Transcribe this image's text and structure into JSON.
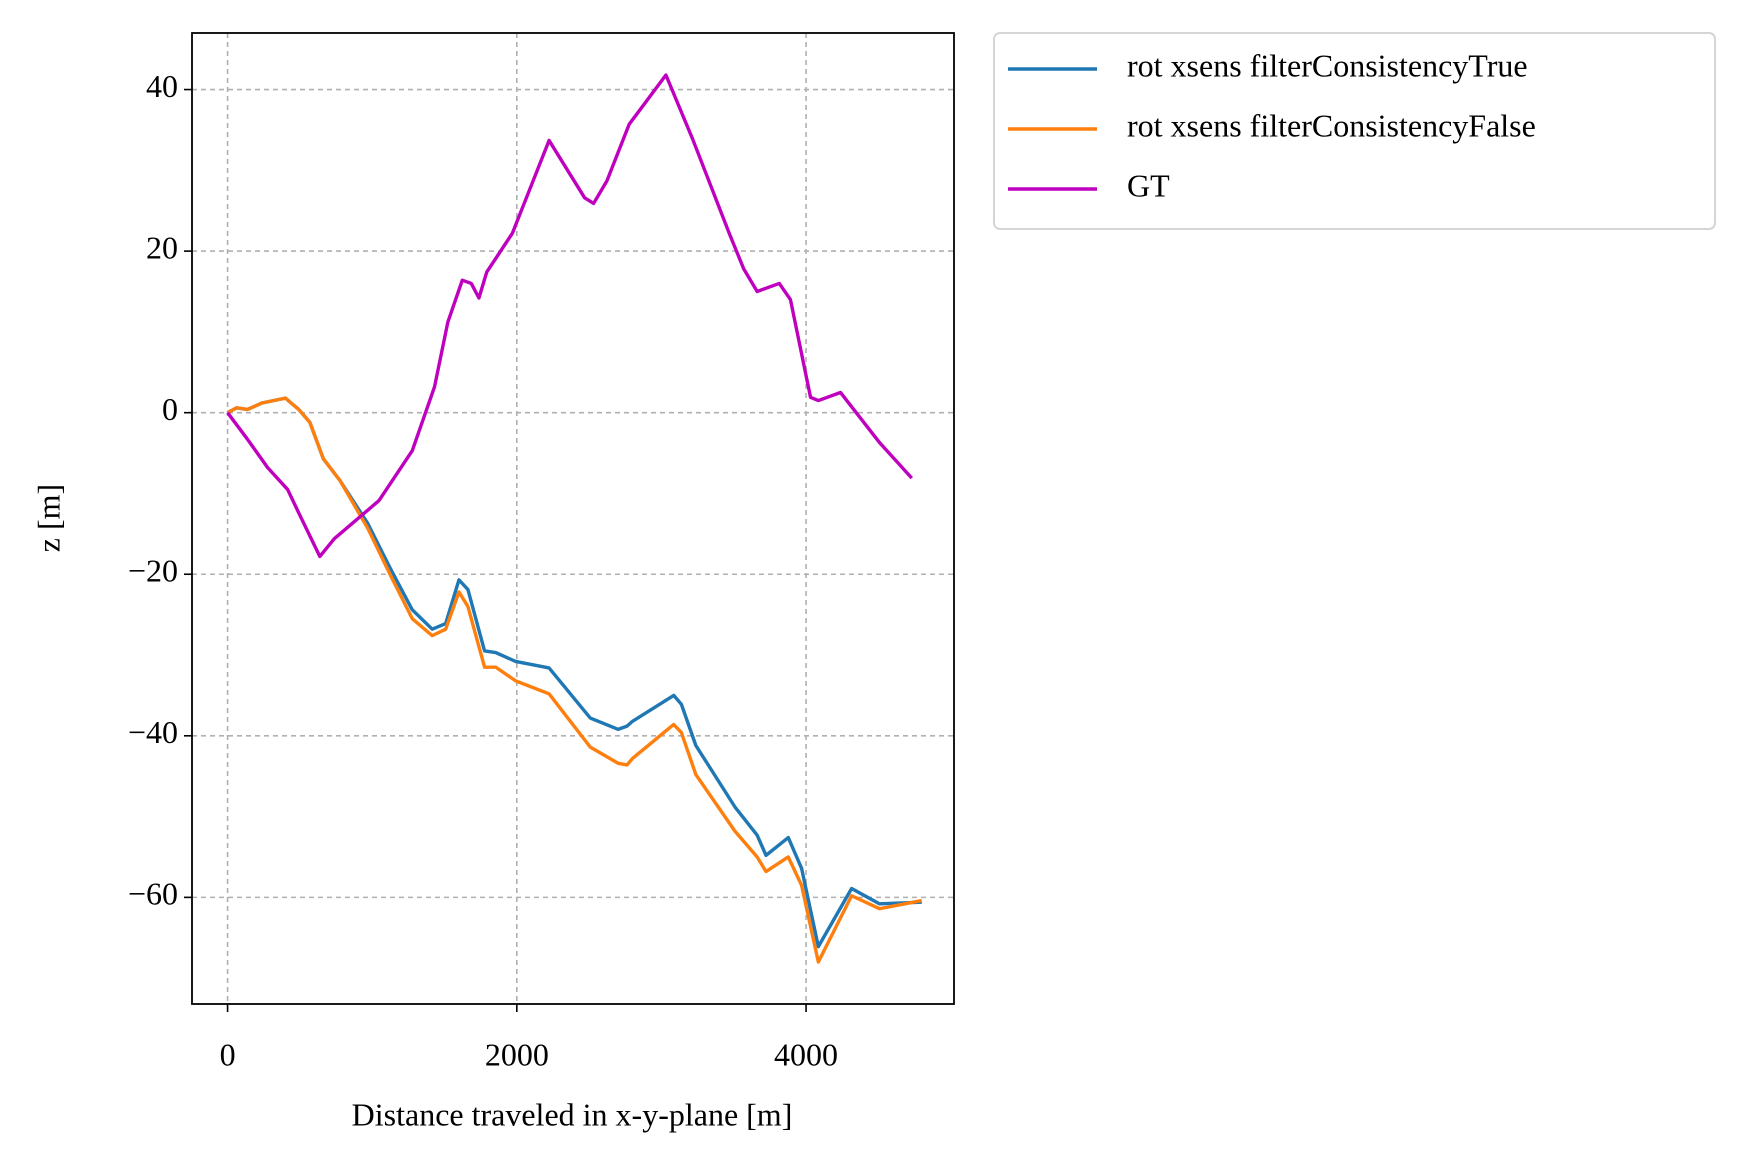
{
  "chart_data": {
    "type": "line",
    "xlabel": "Distance traveled in x-y-plane [m]",
    "ylabel": "z [m]",
    "xlim": [
      -246,
      5023
    ],
    "ylim": [
      -73.2,
      47.0
    ],
    "xticks": [
      0,
      2000,
      4000
    ],
    "yticks": [
      {
        "value": -60,
        "label": "−60"
      },
      {
        "value": -40,
        "label": "−40"
      },
      {
        "value": -20,
        "label": "−20"
      },
      0,
      20,
      40
    ],
    "grid": true,
    "series": [
      {
        "name": "rot xsens filterConsistencyTrue",
        "color": "#1f77b4",
        "x": [
          0,
          62,
          138,
          238,
          400,
          492,
          569,
          662,
          777,
          969,
          1123,
          1277,
          1415,
          1508,
          1600,
          1662,
          1777,
          1854,
          1992,
          2223,
          2508,
          2700,
          2762,
          2800,
          3085,
          3138,
          3238,
          3508,
          3662,
          3723,
          3877,
          3969,
          4085,
          4315,
          4508,
          4800
        ],
        "values": [
          0,
          0.6,
          0.4,
          1.2,
          1.8,
          0.4,
          -1.2,
          -5.7,
          -8.4,
          -13.7,
          -19.2,
          -24.4,
          -26.8,
          -26.1,
          -20.7,
          -21.9,
          -29.5,
          -29.7,
          -30.8,
          -31.6,
          -37.8,
          -39.2,
          -38.8,
          -38.2,
          -35,
          -36.1,
          -41.2,
          -48.8,
          -52.3,
          -54.8,
          -52.6,
          -56.4,
          -66.1,
          -58.9,
          -60.8,
          -60.6
        ]
      },
      {
        "name": "rot xsens filterConsistencyFalse",
        "color": "#ff7f0e",
        "x": [
          0,
          62,
          138,
          238,
          400,
          492,
          569,
          662,
          777,
          969,
          1123,
          1277,
          1415,
          1508,
          1600,
          1662,
          1777,
          1854,
          1992,
          2223,
          2508,
          2700,
          2762,
          2800,
          3085,
          3138,
          3238,
          3508,
          3662,
          3723,
          3877,
          3969,
          4085,
          4315,
          4508,
          4800
        ],
        "values": [
          0,
          0.6,
          0.4,
          1.2,
          1.8,
          0.4,
          -1.2,
          -5.7,
          -8.4,
          -14.3,
          -20,
          -25.5,
          -27.6,
          -26.8,
          -22.2,
          -24,
          -31.5,
          -31.5,
          -33.2,
          -34.8,
          -41.4,
          -43.4,
          -43.6,
          -42.8,
          -38.6,
          -39.6,
          -44.8,
          -51.8,
          -55,
          -56.8,
          -55,
          -58.5,
          -68,
          -59.8,
          -61.4,
          -60.4
        ]
      },
      {
        "name": "GT",
        "color": "#bf00bf",
        "x": [
          0,
          138,
          277,
          415,
          508,
          638,
          738,
          1046,
          1277,
          1431,
          1523,
          1623,
          1685,
          1738,
          1792,
          1969,
          2223,
          2469,
          2531,
          2623,
          2777,
          3031,
          3215,
          3469,
          3569,
          3662,
          3815,
          3892,
          4031,
          4085,
          4238,
          4508,
          4731
        ],
        "values": [
          0,
          -3.3,
          -6.8,
          -9.5,
          -13,
          -17.8,
          -15.6,
          -10.9,
          -4.7,
          3.2,
          11.2,
          16.4,
          16,
          14.2,
          17.4,
          22.2,
          33.7,
          26.6,
          25.9,
          28.7,
          35.7,
          41.8,
          33.9,
          22.2,
          17.8,
          15,
          16,
          14,
          1.9,
          1.5,
          2.5,
          -3.7,
          -8.1
        ]
      }
    ]
  }
}
